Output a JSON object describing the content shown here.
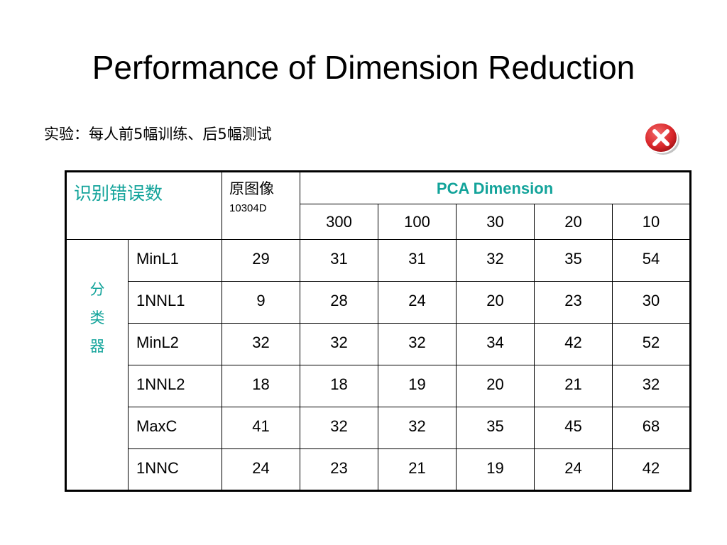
{
  "title": "Performance of Dimension Reduction",
  "subtitle": "实验：每人前5幅训练、后5幅测试",
  "icons": {
    "close": "close-icon",
    "close_color": "#d9262a"
  },
  "colors": {
    "accent": "#12a39a"
  },
  "table": {
    "corner_label": "识别错误数",
    "orig_label": "原图像",
    "orig_dim": "10304D",
    "pca_label": "PCA Dimension",
    "dims": [
      "300",
      "100",
      "30",
      "20",
      "10"
    ],
    "group_label": [
      "分",
      "类",
      "器"
    ],
    "rows": [
      {
        "name": "MinL1",
        "values": [
          "29",
          "31",
          "31",
          "32",
          "35",
          "54"
        ]
      },
      {
        "name": "1NNL1",
        "values": [
          "9",
          "28",
          "24",
          "20",
          "23",
          "30"
        ]
      },
      {
        "name": "MinL2",
        "values": [
          "32",
          "32",
          "32",
          "34",
          "42",
          "52"
        ]
      },
      {
        "name": "1NNL2",
        "values": [
          "18",
          "18",
          "19",
          "20",
          "21",
          "32"
        ]
      },
      {
        "name": "MaxC",
        "values": [
          "41",
          "32",
          "32",
          "35",
          "45",
          "68"
        ]
      },
      {
        "name": "1NNC",
        "values": [
          "24",
          "23",
          "21",
          "19",
          "24",
          "42"
        ]
      }
    ]
  }
}
